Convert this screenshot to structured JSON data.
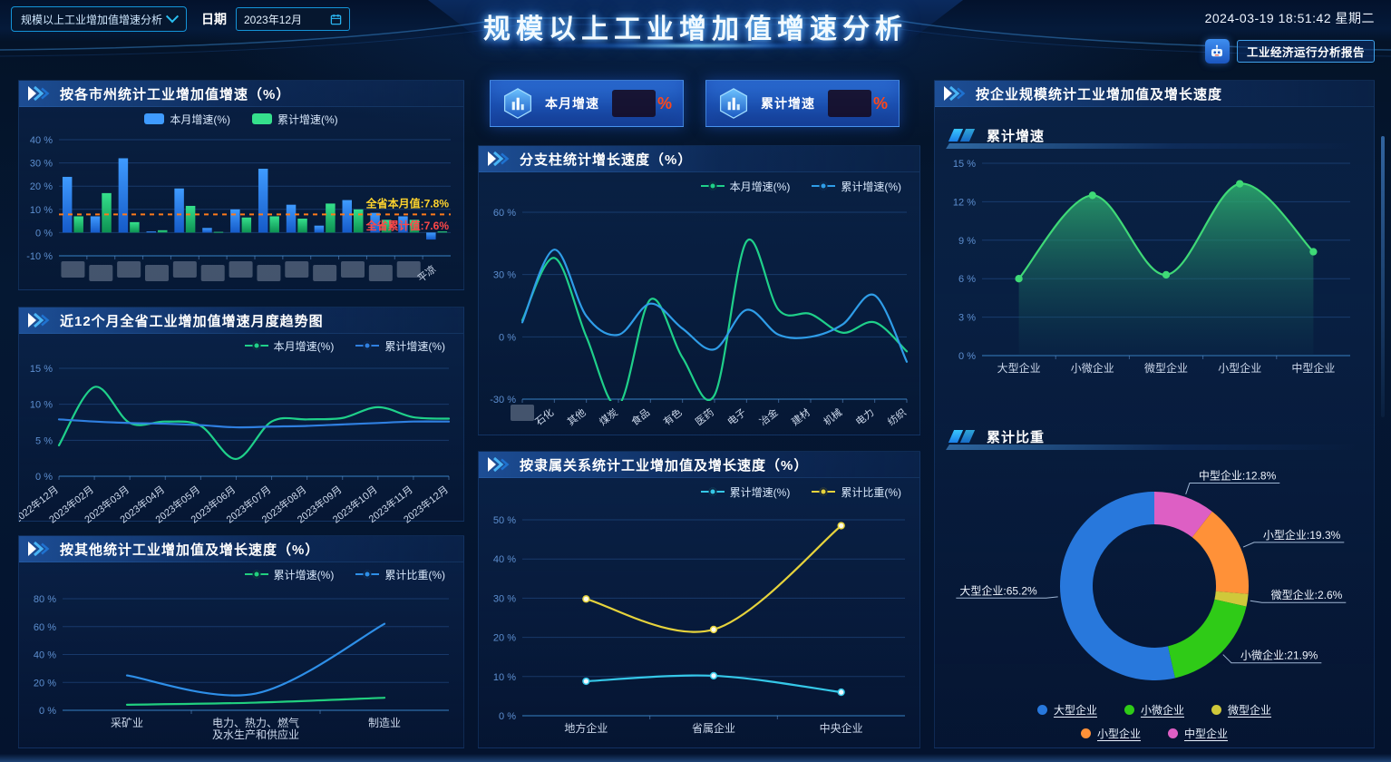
{
  "header": {
    "selector_value": "规模以上工业增加值增速分析",
    "date_label": "日期",
    "date_value": "2023年12月",
    "title": "规模以上工业增加值增速分析",
    "datetime": "2024-03-19 18:51:42 星期二",
    "report_button": "工业经济运行分析报告"
  },
  "stat_cards": [
    {
      "label": "本月增速",
      "unit": "%",
      "value_hidden": true
    },
    {
      "label": "累计增速",
      "unit": "%",
      "value_hidden": true
    }
  ],
  "panels": {
    "left1": {
      "title": "按各市州统计工业增加值增速（%）"
    },
    "left2": {
      "title": "近12个月全省工业增加值增速月度趋势图"
    },
    "left3": {
      "title": "按其他统计工业增加值及增长速度（%）"
    },
    "mid1": {
      "title": "分支柱统计增长速度（%）"
    },
    "mid2": {
      "title": "按隶属关系统计工业增加值及增长速度（%）"
    },
    "right": {
      "title": "按企业规模统计工业增加值及增长速度",
      "section1": "累计增速",
      "section2": "累计比重"
    }
  },
  "chart_data": [
    {
      "id": "city_growth",
      "type": "bar",
      "title": "按各市州统计工业增加值增速（%）",
      "ylim": [
        -10,
        40
      ],
      "yticks": [
        40,
        30,
        20,
        10,
        0,
        -10
      ],
      "legend": "rect",
      "pad": [
        44,
        10,
        14,
        40
      ],
      "rotate": -38,
      "categories": [
        {
          "redacted": true
        },
        {
          "redacted": true
        },
        {
          "redacted": true
        },
        {
          "redacted": true
        },
        {
          "redacted": true
        },
        {
          "redacted": true
        },
        {
          "redacted": true
        },
        {
          "redacted": true
        },
        {
          "redacted": true
        },
        {
          "redacted": true
        },
        {
          "redacted": true
        },
        {
          "redacted": true
        },
        {
          "redacted": true
        },
        {
          "label": "平凉"
        }
      ],
      "series": [
        {
          "name": "本月增速(%)",
          "color": "#3f9bff",
          "color_to": "#155ac8",
          "values": [
            24,
            7,
            32,
            0.5,
            19,
            2,
            10,
            27.5,
            12,
            3,
            14,
            8.5,
            7,
            -3
          ]
        },
        {
          "name": "累计增速(%)",
          "color": "#35e08c",
          "color_to": "#0d9152",
          "values": [
            7,
            17,
            4.5,
            1,
            11.5,
            0.3,
            6.5,
            7,
            6,
            12.5,
            10,
            5.5,
            5.5,
            0.5
          ]
        }
      ],
      "marklines": [
        {
          "value": 7.8,
          "label": "全省本月值:7.8%",
          "label_color": "#ffd42e",
          "line_color": "#ff7a1a",
          "dy": -8
        },
        {
          "value": 7.6,
          "label": "全省累计值:7.6%",
          "label_color": "#ff4848",
          "dy": 16,
          "no_line": true
        }
      ]
    },
    {
      "id": "monthly_trend",
      "type": "line",
      "title": "近12个月全省工业增加值增速月度趋势图",
      "ylim": [
        0,
        15
      ],
      "yticks": [
        15,
        10,
        5,
        0
      ],
      "legend": "line",
      "pad": [
        44,
        12,
        16,
        52
      ],
      "rotate": -38,
      "edge": true,
      "categories": [
        "2022年12月",
        "2023年02月",
        "2023年03月",
        "2023年04月",
        "2023年05月",
        "2023年06月",
        "2023年07月",
        "2023年08月",
        "2023年09月",
        "2023年10月",
        "2023年11月",
        "2023年12月"
      ],
      "series": [
        {
          "name": "本月增速(%)",
          "color": "#1fd08a",
          "values": [
            4.3,
            12.4,
            7.4,
            7.6,
            7.0,
            2.4,
            7.6,
            7.9,
            8.1,
            9.6,
            8.2,
            8.0
          ]
        },
        {
          "name": "累计增速(%)",
          "color": "#2f7fe0",
          "values": [
            7.9,
            7.6,
            7.4,
            7.3,
            7.1,
            6.8,
            6.9,
            7.0,
            7.2,
            7.4,
            7.6,
            7.6
          ]
        }
      ]
    },
    {
      "id": "other_stats",
      "type": "line",
      "title": "按其他统计工业增加值及增长速度（%）",
      "ylim": [
        0,
        80
      ],
      "yticks": [
        80,
        60,
        40,
        20,
        0
      ],
      "legend": "line",
      "pad": [
        48,
        14,
        16,
        44
      ],
      "categories": [
        "采矿业",
        "电力、热力、燃气\n及水生产和供应业",
        "制造业"
      ],
      "series": [
        {
          "name": "累计增速(%)",
          "color": "#21cf7f",
          "values": [
            4,
            5.5,
            9
          ]
        },
        {
          "name": "累计比重(%)",
          "color": "#2e8fe8",
          "values": [
            25,
            12,
            62
          ]
        }
      ]
    },
    {
      "id": "branch_growth",
      "type": "line",
      "title": "分支柱统计增长速度（%）",
      "ylim": [
        -30,
        60
      ],
      "yticks": [
        60,
        30,
        0,
        -30
      ],
      "legend": "line",
      "pad": [
        48,
        14,
        14,
        42
      ],
      "rotate": -38,
      "edge": true,
      "clip": true,
      "categories": [
        {
          "redacted": true
        },
        "石化",
        "其他",
        "煤炭",
        "食品",
        "有色",
        "医药",
        "电子",
        "冶金",
        "建材",
        "机械",
        "电力",
        "纺织"
      ],
      "series": [
        {
          "name": "本月增速(%)",
          "color": "#1fd08a",
          "values": [
            8,
            38,
            0,
            -33,
            18,
            -10,
            -28,
            46,
            13,
            11,
            2,
            7,
            -7
          ]
        },
        {
          "name": "累计增速(%)",
          "color": "#2f9de8",
          "values": [
            7,
            42,
            10,
            1,
            16,
            4,
            -6,
            13,
            1,
            0,
            6,
            20,
            -12
          ]
        }
      ]
    },
    {
      "id": "affiliation",
      "type": "line",
      "title": "按隶属关系统计工业增加值及增长速度（%）",
      "ylim": [
        0,
        50
      ],
      "yticks": [
        50,
        40,
        30,
        20,
        10,
        0
      ],
      "legend": "line",
      "pad": [
        48,
        16,
        16,
        38
      ],
      "marker": true,
      "categories": [
        "地方企业",
        "省属企业",
        "中央企业"
      ],
      "series": [
        {
          "name": "累计增速(%)",
          "color": "#35c8e8",
          "marker_fill": "#f2f8ff",
          "values": [
            8.8,
            10.2,
            6
          ]
        },
        {
          "name": "累计比重(%)",
          "color": "#e6d33c",
          "marker_fill": "#fdfbe8",
          "values": [
            29.8,
            22,
            48.5
          ]
        }
      ]
    },
    {
      "id": "scale_growth",
      "type": "line",
      "title": "累计增速",
      "ylim": [
        0,
        15
      ],
      "yticks": [
        15,
        12,
        9,
        6,
        3,
        0
      ],
      "pad": [
        52,
        18,
        26,
        38
      ],
      "marker": true,
      "area": true,
      "categories": [
        "大型企业",
        "小微企业",
        "微型企业",
        "小型企业",
        "中型企业"
      ],
      "series": [
        {
          "name": "累计增速",
          "color": "#3fd977",
          "area_from": "rgba(46,178,112,0.85)",
          "area_to": "rgba(16,70,92,0.10)",
          "values": [
            6.0,
            12.5,
            6.3,
            13.4,
            8.1
          ]
        }
      ]
    },
    {
      "id": "scale_share",
      "type": "pie",
      "title": "累计比重",
      "slices": [
        {
          "label": "中型企业",
          "value": 12.8,
          "color": "#dd5fc4",
          "text": "中型企业:12.8%"
        },
        {
          "label": "小型企业",
          "value": 19.3,
          "color": "#ff9138",
          "text": "小型企业:19.3%"
        },
        {
          "label": "微型企业",
          "value": 2.6,
          "color": "#cfc83a",
          "text": "微型企业:2.6%"
        },
        {
          "label": "小微企业",
          "value": 21.9,
          "color": "#2fcb17",
          "text": "小微企业:21.9%"
        },
        {
          "label": "大型企业",
          "value": 65.2,
          "color": "#2878dc",
          "text": "大型企业:65.2%"
        }
      ],
      "legend_rows": [
        [
          "大型企业",
          "小微企业",
          "微型企业"
        ],
        [
          "小型企业",
          "中型企业"
        ]
      ]
    }
  ]
}
